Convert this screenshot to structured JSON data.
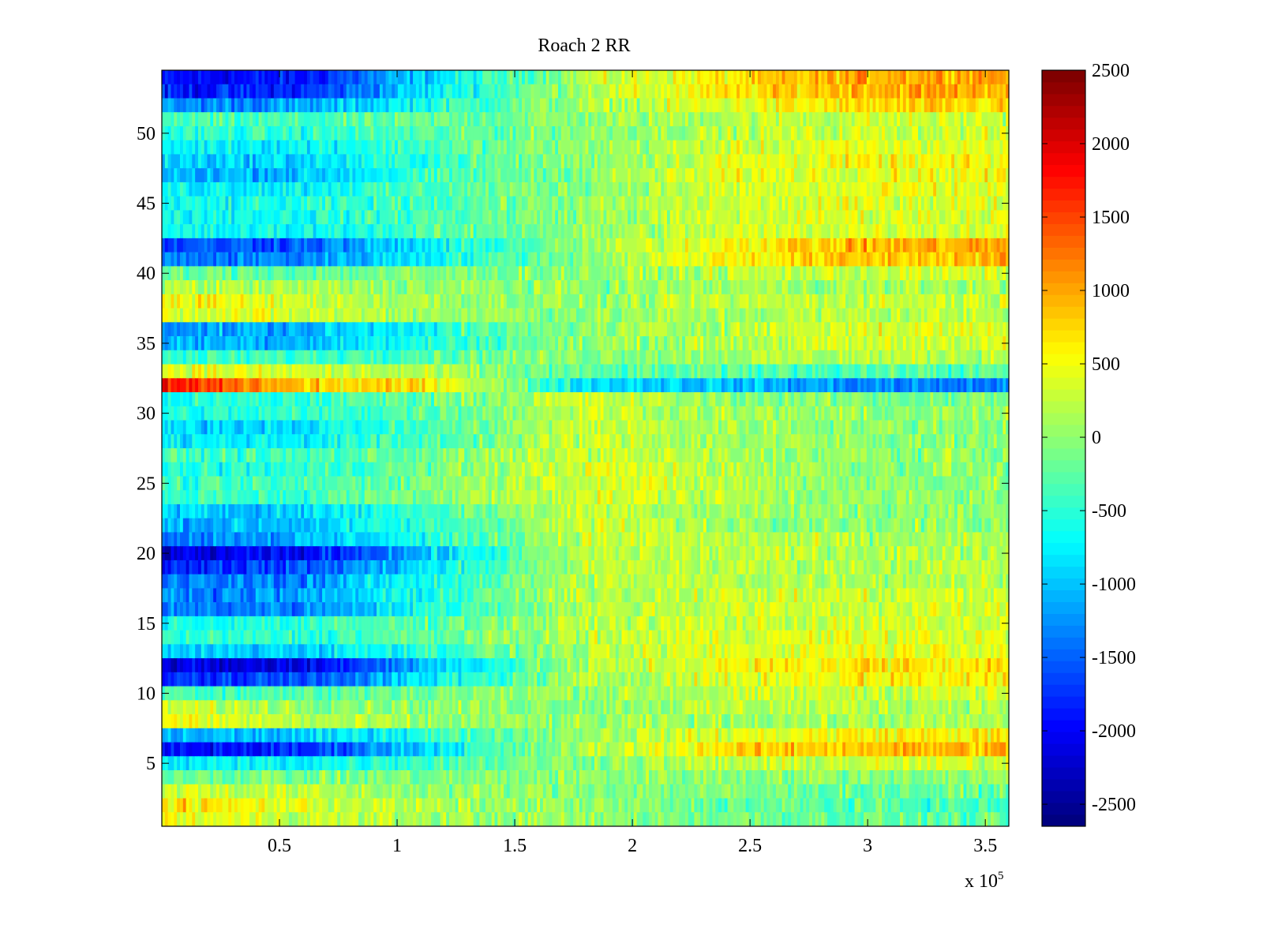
{
  "chart_data": {
    "type": "heatmap",
    "title": "Roach 2 RR",
    "xlabel": "",
    "ylabel": "",
    "x_multiplier_label": "x 10",
    "x_multiplier_exponent": "5",
    "xlim": [
      0,
      3.6
    ],
    "ylim": [
      0.5,
      54.5
    ],
    "x_ticks": [
      0.5,
      1,
      1.5,
      2,
      2.5,
      3,
      3.5
    ],
    "x_tick_labels": [
      "0.5",
      "1",
      "1.5",
      "2",
      "2.5",
      "3",
      "3.5"
    ],
    "y_ticks": [
      5,
      10,
      15,
      20,
      25,
      30,
      35,
      40,
      45,
      50
    ],
    "y_tick_labels": [
      "5",
      "10",
      "15",
      "20",
      "25",
      "30",
      "35",
      "40",
      "45",
      "50"
    ],
    "row_count": 54,
    "grid": false,
    "colormap": "jet",
    "colorbar": {
      "position": "right",
      "clim": [
        -2650,
        2500
      ],
      "ticks": [
        2500,
        2000,
        1500,
        1000,
        500,
        0,
        -500,
        -1000,
        -1500,
        -2000,
        -2500
      ],
      "tick_labels": [
        "2500",
        "2000",
        "1500",
        "1000",
        "500",
        "0",
        "-500",
        "-1000",
        "-1500",
        "-2000",
        "-2500"
      ],
      "levels": 64
    },
    "row_profiles": {
      "columns": [
        "x=0",
        "x=0.6",
        "x=1.2",
        "x=1.8",
        "x=2.4",
        "x=3.0",
        "x=3.6"
      ],
      "rows": [
        {
          "row": 54,
          "values": [
            -2000,
            -1900,
            -800,
            200,
            600,
            1000,
            1100
          ]
        },
        {
          "row": 53,
          "values": [
            -1900,
            -1800,
            -700,
            200,
            600,
            1000,
            1000
          ]
        },
        {
          "row": 52,
          "values": [
            -1300,
            -1200,
            -500,
            100,
            400,
            700,
            700
          ]
        },
        {
          "row": 51,
          "values": [
            -400,
            -400,
            -200,
            0,
            200,
            300,
            300
          ]
        },
        {
          "row": 50,
          "values": [
            -500,
            -500,
            -300,
            0,
            200,
            300,
            300
          ]
        },
        {
          "row": 49,
          "values": [
            -700,
            -700,
            -300,
            0,
            300,
            400,
            400
          ]
        },
        {
          "row": 48,
          "values": [
            -900,
            -900,
            -400,
            0,
            400,
            500,
            500
          ]
        },
        {
          "row": 47,
          "values": [
            -1100,
            -1000,
            -400,
            0,
            400,
            500,
            500
          ]
        },
        {
          "row": 46,
          "values": [
            -700,
            -700,
            -300,
            0,
            300,
            400,
            400
          ]
        },
        {
          "row": 45,
          "values": [
            -700,
            -600,
            -300,
            0,
            300,
            400,
            400
          ]
        },
        {
          "row": 44,
          "values": [
            -600,
            -600,
            -300,
            0,
            300,
            400,
            400
          ]
        },
        {
          "row": 43,
          "values": [
            -700,
            -700,
            -300,
            0,
            300,
            400,
            400
          ]
        },
        {
          "row": 42,
          "values": [
            -1600,
            -1500,
            -700,
            0,
            600,
            900,
            1000
          ]
        },
        {
          "row": 41,
          "values": [
            -1400,
            -1300,
            -600,
            0,
            600,
            800,
            900
          ]
        },
        {
          "row": 40,
          "values": [
            -200,
            -200,
            -100,
            0,
            200,
            300,
            300
          ]
        },
        {
          "row": 39,
          "values": [
            200,
            100,
            0,
            0,
            100,
            100,
            100
          ]
        },
        {
          "row": 38,
          "values": [
            600,
            300,
            100,
            0,
            200,
            300,
            300
          ]
        },
        {
          "row": 37,
          "values": [
            500,
            300,
            100,
            0,
            100,
            200,
            200
          ]
        },
        {
          "row": 36,
          "values": [
            -1200,
            -1100,
            -500,
            0,
            200,
            400,
            400
          ]
        },
        {
          "row": 35,
          "values": [
            -1100,
            -1000,
            -500,
            0,
            200,
            300,
            400
          ]
        },
        {
          "row": 34,
          "values": [
            -500,
            -400,
            -200,
            0,
            100,
            200,
            200
          ]
        },
        {
          "row": 33,
          "values": [
            500,
            300,
            100,
            -300,
            -300,
            -300,
            -300
          ]
        },
        {
          "row": 32,
          "values": [
            1800,
            800,
            600,
            -800,
            -1000,
            -1300,
            -1400
          ]
        },
        {
          "row": 31,
          "values": [
            -600,
            -500,
            -100,
            300,
            0,
            -100,
            -100
          ]
        },
        {
          "row": 30,
          "values": [
            -600,
            -500,
            -200,
            300,
            100,
            0,
            0
          ]
        },
        {
          "row": 29,
          "values": [
            -900,
            -800,
            -300,
            300,
            100,
            0,
            0
          ]
        },
        {
          "row": 28,
          "values": [
            -800,
            -700,
            -300,
            300,
            100,
            0,
            0
          ]
        },
        {
          "row": 27,
          "values": [
            -400,
            -400,
            -100,
            300,
            100,
            0,
            0
          ]
        },
        {
          "row": 26,
          "values": [
            -600,
            -500,
            -100,
            400,
            200,
            0,
            0
          ]
        },
        {
          "row": 25,
          "values": [
            -500,
            -400,
            0,
            400,
            200,
            0,
            0
          ]
        },
        {
          "row": 24,
          "values": [
            -500,
            -400,
            0,
            400,
            200,
            0,
            0
          ]
        },
        {
          "row": 23,
          "values": [
            -1000,
            -900,
            -300,
            300,
            100,
            0,
            0
          ]
        },
        {
          "row": 22,
          "values": [
            -1100,
            -1000,
            -400,
            300,
            100,
            0,
            0
          ]
        },
        {
          "row": 21,
          "values": [
            -1300,
            -1100,
            -500,
            300,
            200,
            100,
            100
          ]
        },
        {
          "row": 20,
          "values": [
            -2200,
            -2000,
            -900,
            200,
            200,
            200,
            200
          ]
        },
        {
          "row": 19,
          "values": [
            -1800,
            -1600,
            -700,
            200,
            200,
            200,
            200
          ]
        },
        {
          "row": 18,
          "values": [
            -1400,
            -1300,
            -500,
            200,
            200,
            200,
            200
          ]
        },
        {
          "row": 17,
          "values": [
            -1300,
            -1200,
            -500,
            200,
            300,
            300,
            300
          ]
        },
        {
          "row": 16,
          "values": [
            -1400,
            -1300,
            -500,
            200,
            300,
            300,
            300
          ]
        },
        {
          "row": 15,
          "values": [
            -600,
            -500,
            -200,
            200,
            300,
            300,
            300
          ]
        },
        {
          "row": 14,
          "values": [
            -500,
            -500,
            -200,
            200,
            400,
            400,
            400
          ]
        },
        {
          "row": 13,
          "values": [
            -1000,
            -900,
            -400,
            100,
            400,
            500,
            500
          ]
        },
        {
          "row": 12,
          "values": [
            -2200,
            -2100,
            -900,
            100,
            500,
            700,
            700
          ]
        },
        {
          "row": 11,
          "values": [
            -1800,
            -1600,
            -700,
            100,
            400,
            600,
            600
          ]
        },
        {
          "row": 10,
          "values": [
            -300,
            -300,
            -100,
            100,
            200,
            300,
            300
          ]
        },
        {
          "row": 9,
          "values": [
            300,
            100,
            0,
            0,
            200,
            200,
            200
          ]
        },
        {
          "row": 8,
          "values": [
            500,
            200,
            0,
            0,
            100,
            100,
            100
          ]
        },
        {
          "row": 7,
          "values": [
            -1100,
            -1000,
            -400,
            100,
            400,
            600,
            600
          ]
        },
        {
          "row": 6,
          "values": [
            -2000,
            -1800,
            -700,
            100,
            700,
            900,
            900
          ]
        },
        {
          "row": 5,
          "values": [
            -800,
            -700,
            -300,
            0,
            200,
            300,
            300
          ]
        },
        {
          "row": 4,
          "values": [
            -100,
            -100,
            -100,
            0,
            0,
            0,
            0
          ]
        },
        {
          "row": 3,
          "values": [
            400,
            200,
            0,
            0,
            -100,
            -200,
            -200
          ]
        },
        {
          "row": 2,
          "values": [
            700,
            400,
            100,
            0,
            -200,
            -300,
            -400
          ]
        },
        {
          "row": 1,
          "values": [
            500,
            300,
            100,
            0,
            -100,
            -200,
            -300
          ]
        }
      ]
    }
  }
}
